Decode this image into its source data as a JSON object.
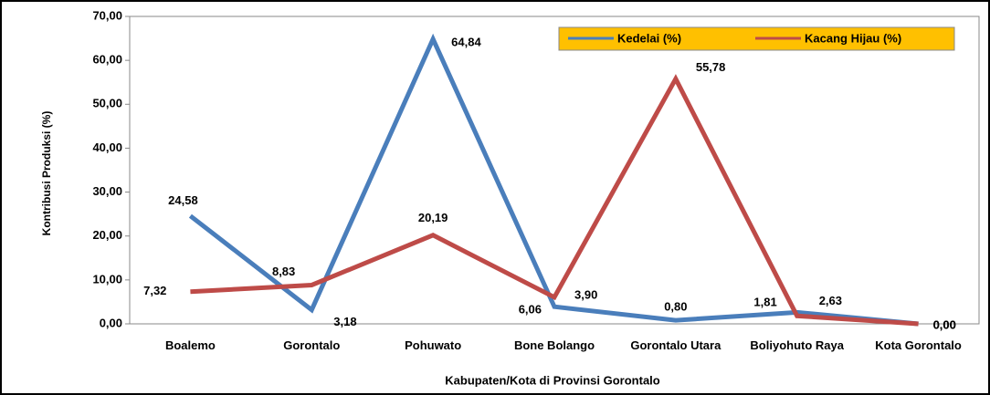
{
  "chart_data": {
    "type": "line",
    "categories": [
      "Boalemo",
      "Gorontalo",
      "Pohuwato",
      "Bone Bolango",
      "Gorontalo Utara",
      "Boliyohuto Raya",
      "Kota Gorontalo"
    ],
    "series": [
      {
        "name": "Kedelai (%)",
        "color": "#4a7ebb",
        "values": [
          24.58,
          3.18,
          64.84,
          3.9,
          0.8,
          2.63,
          0.0
        ],
        "value_labels": [
          "24,58",
          "3,18",
          "64,84",
          "3,90",
          "0,80",
          "2,63",
          "0,00"
        ]
      },
      {
        "name": "Kacang Hijau (%)",
        "color": "#be4b48",
        "values": [
          7.32,
          8.83,
          20.19,
          6.06,
          55.78,
          1.81,
          0.0
        ],
        "value_labels": [
          "7,32",
          "8,83",
          "20,19",
          "6,06",
          "55,78",
          "1,81",
          "0,00"
        ]
      }
    ],
    "ylim": [
      0,
      70
    ],
    "yticks": [
      {
        "value": 0,
        "label": "0,00"
      },
      {
        "value": 10,
        "label": "10,00"
      },
      {
        "value": 20,
        "label": "20,00"
      },
      {
        "value": 30,
        "label": "30,00"
      },
      {
        "value": 40,
        "label": "40,00"
      },
      {
        "value": 50,
        "label": "50,00"
      },
      {
        "value": 60,
        "label": "60,00"
      },
      {
        "value": 70,
        "label": "70,00"
      }
    ],
    "y_label": "Kontribusi Produksi (%)",
    "x_label": "Kabupaten/Kota di Provinsi Gorontalo",
    "legend": "top-right",
    "legend_color": "#ffc000",
    "grid": false
  }
}
